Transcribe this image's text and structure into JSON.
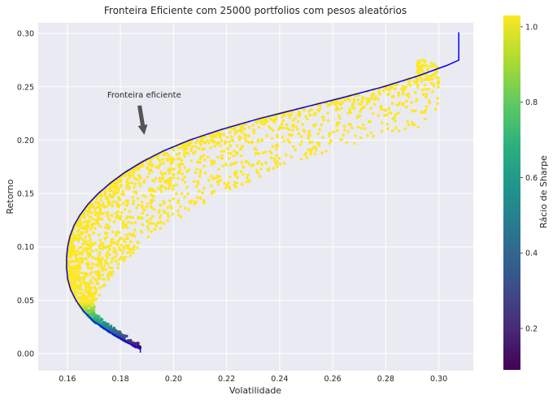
{
  "chart_data": {
    "type": "scatter",
    "title": "Fronteira Eficiente com 25000 portfolios com pesos aleatórios",
    "xlabel": "Volatilidade",
    "ylabel": "Retorno",
    "xlim": [
      0.149,
      0.313
    ],
    "ylim": [
      -0.016,
      0.31
    ],
    "xticks": [
      0.16,
      0.18,
      0.2,
      0.22,
      0.24,
      0.26,
      0.28,
      0.3
    ],
    "xtick_labels": [
      "0.16",
      "0.18",
      "0.20",
      "0.22",
      "0.24",
      "0.26",
      "0.28",
      "0.30"
    ],
    "yticks": [
      0.0,
      0.05,
      0.1,
      0.15,
      0.2,
      0.25,
      0.3
    ],
    "ytick_labels": [
      "0.00",
      "0.05",
      "0.10",
      "0.15",
      "0.20",
      "0.25",
      "0.30"
    ],
    "grid": true,
    "colormap": "viridis",
    "colorbar": {
      "label": "Rácio de Sharpe",
      "range": [
        0.09,
        1.03
      ],
      "ticks": [
        0.2,
        0.4,
        0.6,
        0.8,
        1.0
      ],
      "tick_labels": [
        "0.2",
        "0.4",
        "0.6",
        "0.8",
        "1.0"
      ]
    },
    "series": [
      {
        "kind": "frontier_line",
        "color": "#0000ff",
        "points": [
          [
            0.1875,
            0.001
          ],
          [
            0.1875,
            0.004
          ],
          [
            0.183,
            0.01
          ],
          [
            0.176,
            0.02
          ],
          [
            0.17,
            0.03
          ],
          [
            0.166,
            0.04
          ],
          [
            0.1632,
            0.05
          ],
          [
            0.1612,
            0.06
          ],
          [
            0.1601,
            0.07
          ],
          [
            0.1597,
            0.08
          ],
          [
            0.1597,
            0.09
          ],
          [
            0.1601,
            0.1
          ],
          [
            0.161,
            0.11
          ],
          [
            0.1625,
            0.12
          ],
          [
            0.1648,
            0.13
          ],
          [
            0.1678,
            0.14
          ],
          [
            0.1716,
            0.15
          ],
          [
            0.1763,
            0.16
          ],
          [
            0.1818,
            0.17
          ],
          [
            0.1884,
            0.18
          ],
          [
            0.1963,
            0.19
          ],
          [
            0.206,
            0.2
          ],
          [
            0.218,
            0.21
          ],
          [
            0.232,
            0.22
          ],
          [
            0.248,
            0.23
          ],
          [
            0.264,
            0.24
          ],
          [
            0.279,
            0.25
          ],
          [
            0.292,
            0.26
          ],
          [
            0.303,
            0.27
          ],
          [
            0.3075,
            0.275
          ],
          [
            0.3075,
            0.288
          ],
          [
            0.3075,
            0.301
          ]
        ]
      }
    ],
    "annotation": {
      "text": "Fronteira eficiente",
      "text_xy": [
        0.175,
        0.24
      ],
      "arrow_tip": [
        0.189,
        0.205
      ],
      "arrow_color": "#555555"
    }
  }
}
